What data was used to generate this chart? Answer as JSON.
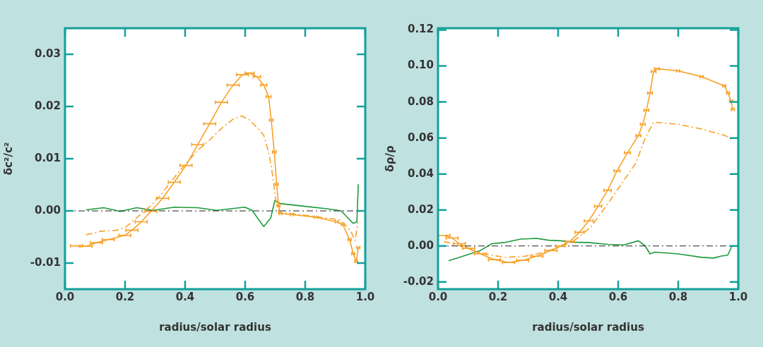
{
  "chart_data": [
    {
      "type": "line",
      "xlabel": "radius/solar radius",
      "ylabel": "δc²/c²",
      "xlim": [
        0,
        1
      ],
      "ylim": [
        -0.015,
        0.035
      ],
      "xticks": [
        {
          "value": 0,
          "label": "0.0"
        },
        {
          "value": 0.2,
          "label": "0.2"
        },
        {
          "value": 0.4,
          "label": "0.4"
        },
        {
          "value": 0.6,
          "label": "0.6"
        },
        {
          "value": 0.8,
          "label": "0.8"
        },
        {
          "value": 1,
          "label": "1.0"
        }
      ],
      "yticks": [
        {
          "value": -0.01,
          "label": "-0.01"
        },
        {
          "value": 0,
          "label": "0.00"
        },
        0.01,
        0.02,
        0.03
      ],
      "grid": false,
      "legend": false,
      "marker": "none",
      "ref_lines": [
        {
          "axis": "y",
          "value": 0,
          "color": "#222222",
          "line_style": "dashed"
        }
      ],
      "series": [
        {
          "color": "#f7a128",
          "line_style": "solid",
          "x": [
            0.038,
            0.07,
            0.105,
            0.144,
            0.199,
            0.223,
            0.254,
            0.286,
            0.325,
            0.364,
            0.403,
            0.442,
            0.482,
            0.521,
            0.56,
            0.591,
            0.615,
            0.639,
            0.662,
            0.678,
            0.687,
            0.697,
            0.705,
            0.711,
            0.717,
            0.756,
            0.835,
            0.905,
            0.925,
            0.948,
            0.96,
            0.97,
            0.977
          ],
          "values": [
            -0.0067,
            -0.0068,
            -0.0061,
            -0.0055,
            -0.0047,
            -0.0037,
            -0.0021,
            -0.0001,
            0.0024,
            0.0055,
            0.0087,
            0.0127,
            0.0167,
            0.0208,
            0.0241,
            0.0261,
            0.0264,
            0.0257,
            0.0241,
            0.0219,
            0.0174,
            0.0113,
            0.0051,
            0.001,
            -0.0005,
            -0.0007,
            -0.0012,
            -0.0021,
            -0.0026,
            -0.0055,
            -0.0082,
            -0.0097,
            -0.007
          ],
          "xerrors": [
            0.02,
            0.02,
            0.02,
            0.02,
            0.02,
            0.02,
            0.02,
            0.02,
            0.02,
            0.02,
            0.02,
            0.02,
            0.02,
            0.02,
            0.02,
            0.02,
            0.015,
            0.012,
            0.01,
            0.008,
            0.006,
            0.006,
            0.005,
            0.005,
            0.005,
            0.005,
            0.005,
            0.005,
            0.005,
            0.005,
            0.005,
            0.005,
            0.005
          ]
        },
        {
          "color": "#f7a128",
          "line_style": "dashed",
          "x": [
            0.07,
            0.119,
            0.173,
            0.205,
            0.245,
            0.286,
            0.325,
            0.364,
            0.403,
            0.442,
            0.482,
            0.521,
            0.56,
            0.588,
            0.615,
            0.646,
            0.662,
            0.678,
            0.689,
            0.701,
            0.713,
            0.795,
            0.913,
            0.932,
            0.952,
            0.966,
            0.976
          ],
          "values": [
            -0.0046,
            -0.0039,
            -0.0037,
            -0.003,
            -0.001,
            0.001,
            0.0035,
            0.0064,
            0.0091,
            0.0116,
            0.0136,
            0.0158,
            0.0176,
            0.0182,
            0.0174,
            0.0156,
            0.0145,
            0.0113,
            0.0078,
            0.0024,
            -0.0003,
            -0.0008,
            -0.0017,
            -0.0026,
            -0.0039,
            -0.0057,
            -0.0021
          ]
        },
        {
          "color": "#1e9a3c",
          "line_style": "solid",
          "x": [
            0.07,
            0.129,
            0.184,
            0.239,
            0.293,
            0.364,
            0.442,
            0.505,
            0.599,
            0.623,
            0.662,
            0.685,
            0.699,
            0.717,
            0.795,
            0.873,
            0.92,
            0.96,
            0.972,
            0.977
          ],
          "values": [
            0.0002,
            0.0006,
            -0.0001,
            0.0006,
            0.0001,
            0.0007,
            0.0006,
            0.0001,
            0.0007,
            0.0001,
            -0.003,
            -0.0014,
            0.002,
            0.0014,
            0.0009,
            0.0004,
            0,
            -0.0024,
            -0.0021,
            0.0051
          ]
        }
      ]
    },
    {
      "type": "line",
      "xlabel": "radius/solar radius",
      "ylabel": "δρ/ρ",
      "xlim": [
        0,
        1
      ],
      "ylim": [
        -0.024,
        0.121
      ],
      "xticks": [
        {
          "value": 0,
          "label": "0.0"
        },
        {
          "value": 0.2,
          "label": "0.2"
        },
        {
          "value": 0.4,
          "label": "0.4"
        },
        {
          "value": 0.6,
          "label": "0.6"
        },
        {
          "value": 0.8,
          "label": "0.8"
        },
        {
          "value": 1,
          "label": "1.0"
        }
      ],
      "yticks": [
        {
          "value": -0.02,
          "label": "-0.02"
        },
        {
          "value": 0,
          "label": "0.00"
        },
        {
          "value": 0.02,
          "label": "0.02"
        },
        {
          "value": 0.04,
          "label": "0.04"
        },
        {
          "value": 0.06,
          "label": "0.06"
        },
        {
          "value": 0.08,
          "label": "0.08"
        },
        {
          "value": 0.1,
          "label": "0.10"
        },
        {
          "value": 0.12,
          "label": "0.12"
        }
      ],
      "grid": false,
      "legend": false,
      "marker": "none",
      "ref_lines": [
        {
          "axis": "y",
          "value": 0,
          "color": "#222222",
          "line_style": "dashed"
        }
      ],
      "series": [
        {
          "color": "#f7a128",
          "line_style": "solid",
          "x": [
            0.02,
            0.047,
            0.071,
            0.102,
            0.141,
            0.188,
            0.235,
            0.282,
            0.329,
            0.376,
            0.408,
            0.439,
            0.471,
            0.502,
            0.533,
            0.565,
            0.596,
            0.631,
            0.667,
            0.682,
            0.694,
            0.706,
            0.718,
            0.729,
            0.8,
            0.878,
            0.953,
            0.966,
            0.976,
            0.982
          ],
          "values": [
            0.0059,
            0.0044,
            0.0013,
            -0.0013,
            -0.0044,
            -0.0076,
            -0.0092,
            -0.008,
            -0.0057,
            -0.0025,
            0,
            0.0025,
            0.0076,
            0.0139,
            0.0221,
            0.0309,
            0.0417,
            0.0518,
            0.0613,
            0.0676,
            0.0754,
            0.085,
            0.0969,
            0.0985,
            0.0973,
            0.0941,
            0.089,
            0.085,
            0.0805,
            0.0758
          ],
          "xerrors": [
            0.02,
            0.02,
            0.02,
            0.02,
            0.02,
            0.02,
            0.02,
            0.02,
            0.02,
            0.02,
            0.015,
            0.015,
            0.015,
            0.015,
            0.012,
            0.012,
            0.01,
            0.01,
            0.008,
            0.008,
            0.008,
            0.008,
            0.008,
            0.008,
            0.005,
            0.005,
            0.005,
            0.005,
            0.005,
            0.005
          ]
        },
        {
          "color": "#f7a128",
          "line_style": "dashed",
          "x": [
            0.02,
            0.063,
            0.118,
            0.173,
            0.227,
            0.29,
            0.345,
            0.408,
            0.455,
            0.51,
            0.565,
            0.612,
            0.659,
            0.69,
            0.718,
            0.8,
            0.878,
            0.957,
            0.982
          ],
          "values": [
            0.0025,
            0.0006,
            -0.0025,
            -0.0051,
            -0.0063,
            -0.0057,
            -0.0038,
            -0.0006,
            0.0032,
            0.0107,
            0.0234,
            0.0347,
            0.0461,
            0.06,
            0.0688,
            0.0676,
            0.065,
            0.0613,
            0.0587
          ]
        },
        {
          "color": "#1e9a3c",
          "line_style": "solid",
          "x": [
            0.035,
            0.094,
            0.141,
            0.18,
            0.22,
            0.275,
            0.329,
            0.369,
            0.408,
            0.447,
            0.502,
            0.565,
            0.62,
            0.667,
            0.69,
            0.706,
            0.722,
            0.8,
            0.878,
            0.918,
            0.941,
            0.965,
            0.979
          ],
          "values": [
            -0.0082,
            -0.0051,
            -0.0025,
            0.0013,
            0.0019,
            0.0038,
            0.0042,
            0.0032,
            0.0029,
            0.0021,
            0.0019,
            0.0009,
            0.0006,
            0.0029,
            0,
            -0.0044,
            -0.0034,
            -0.0044,
            -0.0063,
            -0.0067,
            -0.0057,
            -0.0051,
            0
          ]
        }
      ]
    }
  ]
}
